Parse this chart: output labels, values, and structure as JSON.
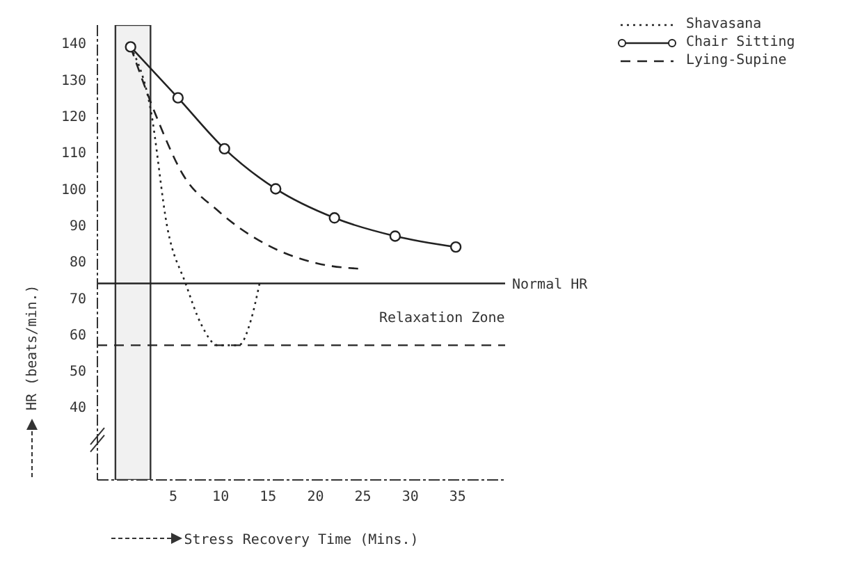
{
  "chart_data": {
    "type": "line",
    "xlabel": "Stress Recovery Time (Mins.)",
    "ylabel": "HR (beats/min.)",
    "xlim": [
      -3,
      40
    ],
    "xticks": [
      5,
      10,
      15,
      20,
      25,
      30,
      35
    ],
    "ylim": [
      20,
      145
    ],
    "yticks": [
      40,
      50,
      60,
      70,
      80,
      90,
      100,
      110,
      120,
      130,
      140
    ],
    "grid": false,
    "legend": "top right",
    "series": [
      {
        "name": "Shavasana",
        "color": "#222222",
        "line_style": "dotted",
        "marker": "none",
        "x": [
          0.5,
          2.6,
          4.4,
          6.3,
          7.9,
          9.7,
          11.9,
          13.2,
          14.1
        ],
        "values": [
          139,
          122,
          89,
          74,
          63,
          57,
          57,
          64,
          74
        ]
      },
      {
        "name": "Chair Sitting",
        "color": "#222222",
        "line_style": "solid",
        "marker": "circle",
        "x": [
          0.5,
          5.5,
          10.4,
          15.8,
          22,
          28.4,
          34.8
        ],
        "values": [
          139,
          125,
          111,
          100,
          92,
          87,
          84
        ]
      },
      {
        "name": "Lying-Supine",
        "color": "#222222",
        "line_style": "dashed",
        "marker": "none",
        "x": [
          0.5,
          3.2,
          6,
          9.7,
          14.6,
          20.2,
          24.8
        ],
        "values": [
          139,
          120,
          104,
          94,
          85,
          79.5,
          78
        ]
      }
    ],
    "ref_lines": [
      {
        "axis": "y",
        "value": 74,
        "label": "Normal HR",
        "line_style": "solid",
        "color": "#222222"
      },
      {
        "axis": "y",
        "value": 57,
        "label": null,
        "line_style": "dashed",
        "color": "#222222"
      }
    ],
    "bands": [
      {
        "axis": "x",
        "from": -1.1,
        "to": 2.6,
        "label": null,
        "color": "#333333"
      }
    ],
    "annotations": [
      "Relaxation Zone"
    ]
  }
}
